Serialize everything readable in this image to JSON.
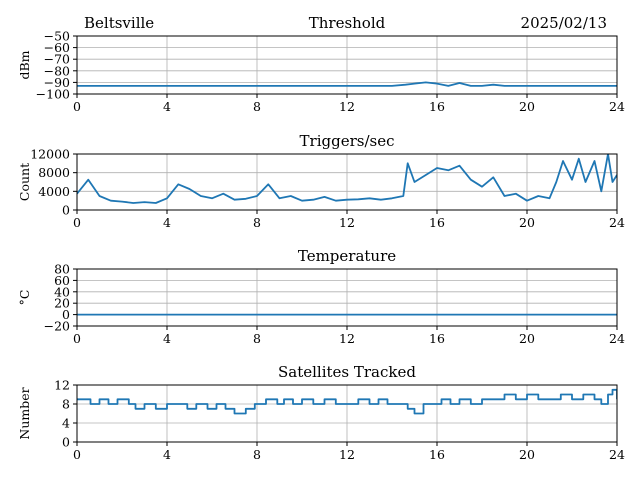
{
  "figure": {
    "location": "Beltsville",
    "date": "2025/02/13",
    "trace_color": "#1f77b4",
    "grid": true
  },
  "chart_data": [
    {
      "type": "line",
      "title": "Threshold",
      "xlabel": "",
      "ylabel": "dBm",
      "xlim": [
        0,
        24
      ],
      "ylim": [
        -100,
        -50
      ],
      "xticks": [
        "0",
        "4",
        "8",
        "12",
        "16",
        "20",
        "24"
      ],
      "yticks": [
        "−50",
        "−60",
        "−70",
        "−80",
        "−90",
        "−100"
      ],
      "x": [
        0,
        1,
        2,
        3,
        4,
        5,
        6,
        7,
        8,
        9,
        10,
        11,
        12,
        13,
        14,
        14.6,
        15,
        15.5,
        16,
        16.5,
        17,
        17.5,
        18,
        18.5,
        19,
        19.5,
        20,
        21,
        22,
        23,
        24
      ],
      "y": [
        -93,
        -93,
        -93,
        -93,
        -93,
        -93,
        -93,
        -93,
        -93,
        -93,
        -93,
        -93,
        -93,
        -93,
        -93,
        -92,
        -91,
        -90,
        -91,
        -93,
        -90.5,
        -93,
        -93,
        -92,
        -93,
        -93,
        -93,
        -93,
        -93,
        -93,
        -93
      ]
    },
    {
      "type": "line",
      "title": "Triggers/sec",
      "xlabel": "",
      "ylabel": "Count",
      "xlim": [
        0,
        24
      ],
      "ylim": [
        0,
        12000
      ],
      "xticks": [
        "0",
        "4",
        "8",
        "12",
        "16",
        "20",
        "24"
      ],
      "yticks": [
        "12000",
        "8000",
        "4000",
        "0"
      ],
      "x": [
        0,
        0.5,
        1,
        1.5,
        2,
        2.5,
        3,
        3.5,
        4,
        4.5,
        5,
        5.5,
        6,
        6.5,
        7,
        7.5,
        8,
        8.5,
        9,
        9.5,
        10,
        10.5,
        11,
        11.5,
        12,
        12.5,
        13,
        13.5,
        14,
        14.5,
        14.7,
        15,
        15.5,
        16,
        16.5,
        17,
        17.5,
        18,
        18.5,
        19,
        19.5,
        20,
        20.5,
        21,
        21.3,
        21.6,
        22,
        22.3,
        22.6,
        23,
        23.3,
        23.6,
        23.8,
        24
      ],
      "y": [
        3500,
        6500,
        3000,
        2000,
        1800,
        1500,
        1700,
        1500,
        2500,
        5500,
        4500,
        3000,
        2500,
        3500,
        2200,
        2400,
        3000,
        5500,
        2500,
        3000,
        2000,
        2200,
        2800,
        2000,
        2200,
        2300,
        2500,
        2200,
        2500,
        3000,
        10000,
        6000,
        7500,
        9000,
        8500,
        9500,
        6500,
        5000,
        7000,
        3000,
        3500,
        2000,
        3000,
        2500,
        6000,
        10500,
        6500,
        11000,
        6000,
        10500,
        4000,
        12000,
        6000,
        7500
      ]
    },
    {
      "type": "line",
      "title": "Temperature",
      "xlabel": "",
      "ylabel": "°C",
      "xlim": [
        0,
        24
      ],
      "ylim": [
        -20,
        80
      ],
      "xticks": [
        "0",
        "4",
        "8",
        "12",
        "16",
        "20",
        "24"
      ],
      "yticks": [
        "80",
        "60",
        "40",
        "20",
        "0",
        "−20"
      ],
      "x": [
        0,
        24
      ],
      "y": [
        0,
        0
      ]
    },
    {
      "type": "line",
      "title": "Satellites Tracked",
      "xlabel": "",
      "ylabel": "Number",
      "xlim": [
        0,
        24
      ],
      "ylim": [
        0,
        12
      ],
      "xticks": [
        "0",
        "4",
        "8",
        "12",
        "16",
        "20",
        "24"
      ],
      "yticks": [
        "12",
        "8",
        "4",
        "0"
      ],
      "step": true,
      "x": [
        0,
        0.6,
        1,
        1.4,
        1.8,
        2.3,
        2.6,
        3,
        3.5,
        4,
        4.4,
        4.9,
        5.3,
        5.8,
        6.2,
        6.6,
        7,
        7.5,
        7.9,
        8.4,
        8.9,
        9.2,
        9.6,
        10,
        10.5,
        11,
        11.5,
        12,
        12.5,
        13,
        13.4,
        13.8,
        14.2,
        14.7,
        15,
        15.4,
        15.8,
        16.2,
        16.6,
        17,
        17.5,
        18,
        18.5,
        19,
        19.5,
        20,
        20.5,
        21,
        21.5,
        22,
        22.5,
        23,
        23.3,
        23.6,
        23.8,
        24
      ],
      "y": [
        9,
        8,
        9,
        8,
        9,
        8,
        7,
        8,
        7,
        8,
        8,
        7,
        8,
        7,
        8,
        7,
        6,
        7,
        8,
        9,
        8,
        9,
        8,
        9,
        8,
        9,
        8,
        8,
        9,
        8,
        9,
        8,
        8,
        7,
        6,
        8,
        8,
        9,
        8,
        9,
        8,
        9,
        9,
        10,
        9,
        10,
        9,
        9,
        10,
        9,
        10,
        9,
        8,
        10,
        11,
        9
      ]
    }
  ]
}
